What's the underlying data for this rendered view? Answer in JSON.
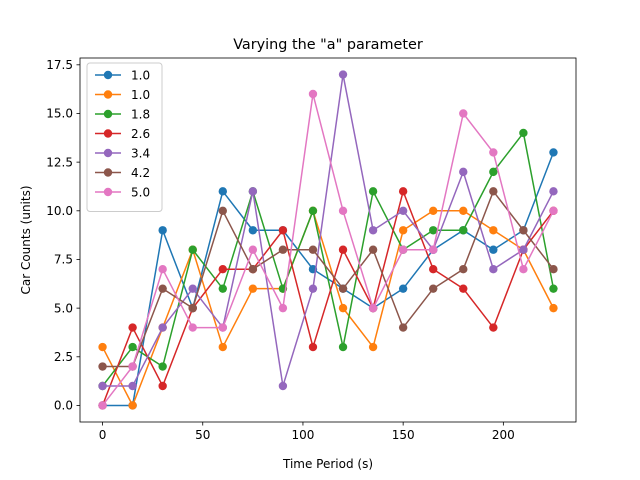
{
  "chart_data": {
    "type": "line",
    "title": "Varying the \"a\" parameter",
    "xlabel": "Time Period (s)",
    "ylabel": "Car Counts (units)",
    "xlim": [
      -11.25,
      236.25
    ],
    "ylim": [
      -0.85,
      17.85
    ],
    "xticks": [
      0,
      50,
      100,
      150,
      200
    ],
    "yticks": [
      0.0,
      2.5,
      5.0,
      7.5,
      10.0,
      12.5,
      15.0,
      17.5
    ],
    "grid": false,
    "legend_position": "top-left",
    "x": [
      0,
      15,
      30,
      45,
      60,
      75,
      90,
      105,
      120,
      135,
      150,
      165,
      180,
      195,
      210,
      225
    ],
    "series": [
      {
        "name": "1.0",
        "color": "#1f77b4",
        "values": [
          0,
          0,
          9,
          5,
          11,
          9,
          9,
          7,
          6,
          5,
          6,
          8,
          9,
          8,
          9,
          13
        ]
      },
      {
        "name": "1.0",
        "color": "#ff7f0e",
        "values": [
          3,
          0,
          4,
          8,
          3,
          6,
          6,
          10,
          5,
          3,
          9,
          10,
          10,
          9,
          8,
          5
        ]
      },
      {
        "name": "1.8",
        "color": "#2ca02c",
        "values": [
          1,
          3,
          2,
          8,
          6,
          11,
          6,
          10,
          3,
          11,
          8,
          9,
          9,
          12,
          14,
          6
        ]
      },
      {
        "name": "2.6",
        "color": "#d62728",
        "values": [
          0,
          4,
          1,
          5,
          7,
          7,
          9,
          3,
          8,
          5,
          11,
          7,
          6,
          4,
          8,
          10
        ]
      },
      {
        "name": "3.4",
        "color": "#9467bd",
        "values": [
          1,
          1,
          4,
          6,
          4,
          11,
          1,
          6,
          17,
          9,
          10,
          8,
          12,
          7,
          8,
          11
        ]
      },
      {
        "name": "4.2",
        "color": "#8c564b",
        "values": [
          2,
          2,
          6,
          5,
          10,
          7,
          8,
          8,
          6,
          8,
          4,
          6,
          7,
          11,
          9,
          7
        ]
      },
      {
        "name": "5.0",
        "color": "#e377c2",
        "values": [
          0,
          2,
          7,
          4,
          4,
          8,
          5,
          16,
          10,
          5,
          8,
          8,
          15,
          13,
          7,
          10
        ]
      }
    ]
  }
}
